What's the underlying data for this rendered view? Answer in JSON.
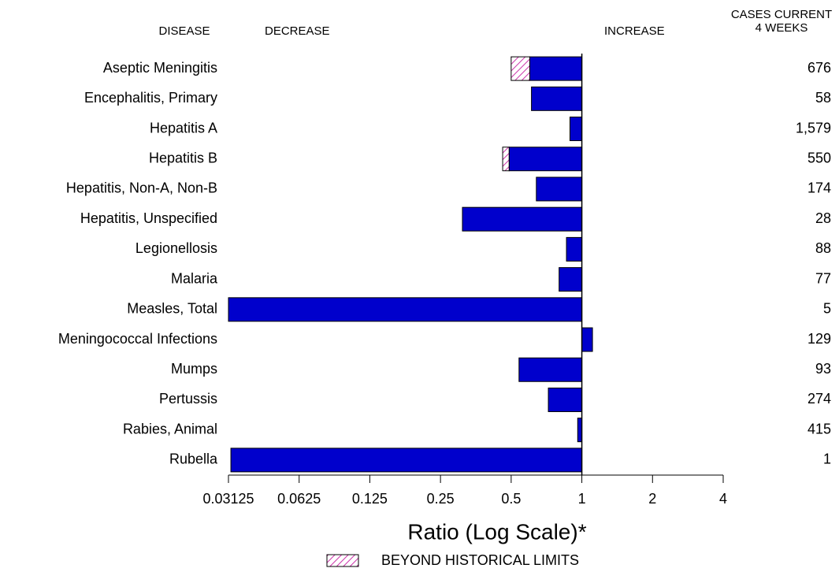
{
  "chart_data": {
    "type": "bar",
    "orientation": "horizontal",
    "log_scale": true,
    "header": {
      "category": "DISEASE",
      "decrease": "DECREASE",
      "increase": "INCREASE",
      "cases": [
        "CASES CURRENT",
        "4 WEEKS"
      ]
    },
    "categories": [
      "Aseptic Meningitis",
      "Encephalitis, Primary",
      "Hepatitis A",
      "Hepatitis B",
      "Hepatitis, Non-A, Non-B",
      "Hepatitis, Unspecified",
      "Legionellosis",
      "Malaria",
      "Measles, Total",
      "Meningococcal Infections",
      "Mumps",
      "Pertussis",
      "Rabies, Animal",
      "Rubella"
    ],
    "series": [
      {
        "color": "#0000cc",
        "values": [
          0.5,
          0.61,
          0.89,
          0.46,
          0.64,
          0.31,
          0.86,
          0.8,
          0.03125,
          1.11,
          0.54,
          0.72,
          0.96,
          0.032
        ],
        "limits": [
          0.6,
          null,
          null,
          0.49,
          null,
          null,
          null,
          null,
          null,
          null,
          null,
          null,
          null,
          null
        ]
      }
    ],
    "cases": [
      "676",
      "58",
      "1,579",
      "550",
      "174",
      "28",
      "88",
      "77",
      "5",
      "129",
      "93",
      "274",
      "415",
      "1"
    ],
    "xlim": [
      0.03125,
      4
    ],
    "xticks": [
      0.03125,
      0.0625,
      0.125,
      0.25,
      0.5,
      1,
      2,
      4
    ],
    "baseline": 1,
    "xlabel": "Ratio (Log Scale)*",
    "legend": {
      "label": "BEYOND HISTORICAL LIMITS",
      "color": "#cc33aa"
    }
  }
}
